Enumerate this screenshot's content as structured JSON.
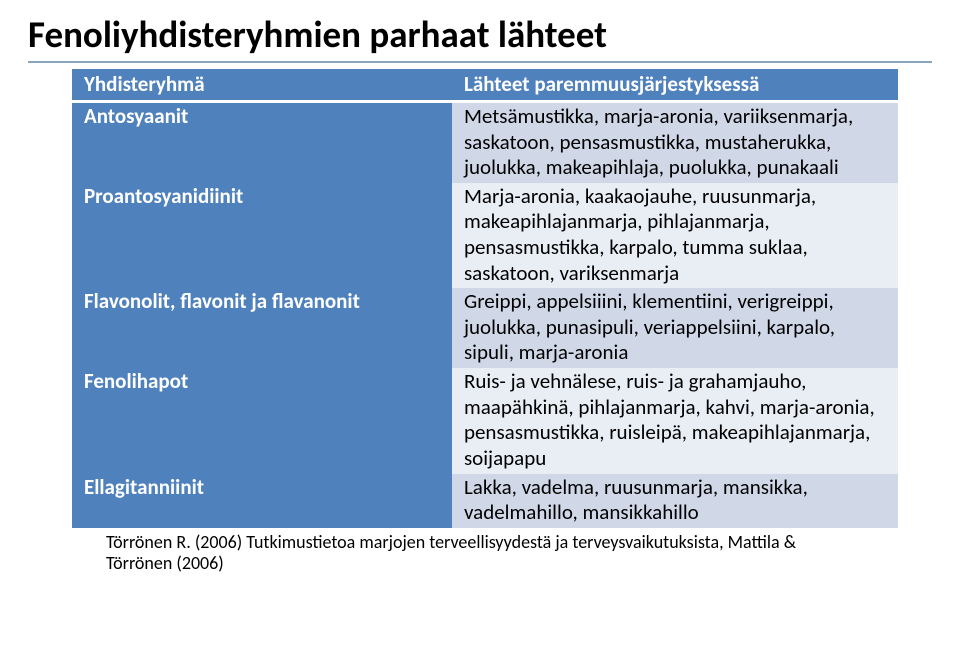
{
  "title": "Fenoliyhdisteryhmien parhaat lähteet",
  "colors": {
    "header_bg": "#4f81bd",
    "header_text": "#ffffff",
    "label_bg": "#4f81bd",
    "label_text": "#ffffff",
    "value_bg_odd": "#d0d8e8",
    "value_bg_even": "#e9edf4",
    "value_text": "#000000",
    "rule": "#8aa6bf",
    "background": "#ffffff",
    "title_text": "#000000"
  },
  "typography": {
    "title_fontsize": 37,
    "title_weight": 700,
    "cell_fontsize": 21,
    "citation_fontsize": 18,
    "font_family": "Calibri"
  },
  "table": {
    "type": "table",
    "column_widths_pct": [
      46,
      54
    ],
    "headers": [
      "Yhdisteryhmä",
      "Lähteet paremmuusjärjestyksessä"
    ],
    "rows": [
      {
        "label": "Antosyaanit",
        "value": "Metsämustikka, marja-aronia, variiksenmarja, saskatoon, pensasmustikka, mustaherukka, juolukka, makeapihlaja, puolukka, punakaali"
      },
      {
        "label": "Proantosyanidiinit",
        "value": "Marja-aronia, kaakaojauhe, ruusunmarja, makeapihlajanmarja, pihlajanmarja, pensasmustikka, karpalo, tumma suklaa, saskatoon, variksenmarja"
      },
      {
        "label": "Flavonolit, flavonit ja flavanonit",
        "value": "Greippi, appelsiiini, klementiini, verigreippi, juolukka, punasipuli, veriappelsiini, karpalo, sipuli, marja-aronia"
      },
      {
        "label": "Fenolihapot",
        "value": "Ruis- ja vehnälese, ruis- ja grahamjauho, maapähkinä, pihlajanmarja, kahvi, marja-aronia, pensasmustikka, ruisleipä, makeapihlajanmarja, soijapapu"
      },
      {
        "label": "Ellagitanniinit",
        "value": "Lakka, vadelma, ruusunmarja, mansikka, vadelmahillo, mansikkahillo"
      }
    ]
  },
  "citation": "Törrönen R. (2006) Tutkimustietoa marjojen terveellisyydestä ja terveysvaikutuksista, Mattila & Törrönen (2006)"
}
